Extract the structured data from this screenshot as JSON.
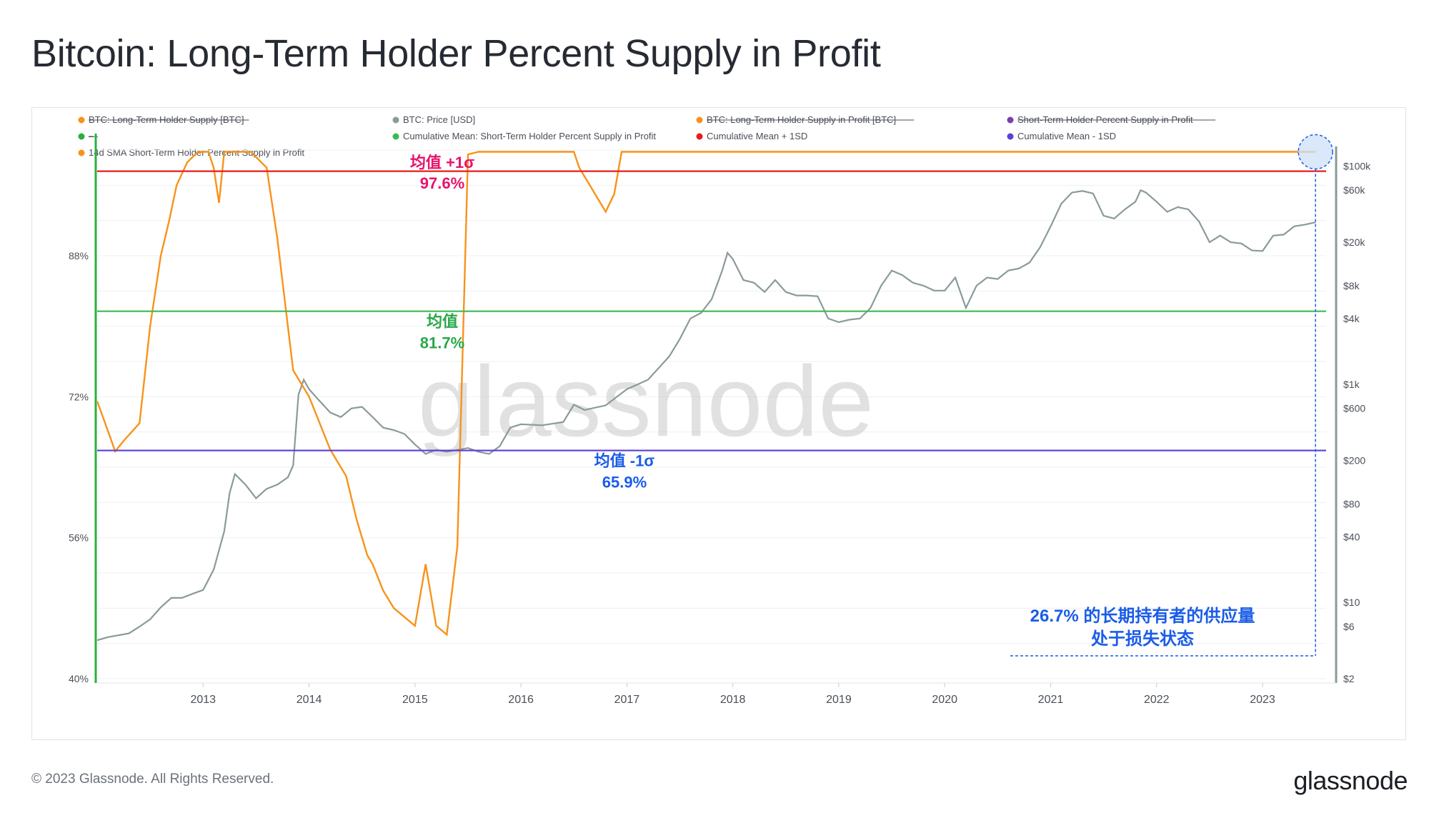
{
  "title": "Bitcoin: Long-Term Holder Percent Supply in Profit",
  "footer": {
    "copyright": "© 2023 Glassnode. All Rights Reserved.",
    "logo": "glassnode"
  },
  "watermark": "glassnode",
  "chart_data": {
    "type": "line",
    "legend": [
      {
        "label": "BTC: Long-Term Holder Supply [BTC]",
        "color": "#f7931a",
        "struck": true
      },
      {
        "label": "BTC: Price [USD]",
        "color": "#8a9a9b",
        "struck": false
      },
      {
        "label": "BTC: Long-Term Holder Supply in Profit [BTC]",
        "color": "#f7931a",
        "struck": true
      },
      {
        "label": "Short-Term Holder Percent Supply in Profit",
        "color": "#7b3fb0",
        "struck": true
      },
      {
        "label": "—",
        "color": "#2ab03a",
        "struck": true
      },
      {
        "label": "Cumulative Mean: Short-Term Holder Percent Supply in Profit",
        "color": "#3cba54",
        "struck": false
      },
      {
        "label": "Cumulative Mean + 1SD",
        "color": "#e81c1c",
        "struck": false
      },
      {
        "label": "Cumulative Mean - 1SD",
        "color": "#5b3fd6",
        "struck": false
      },
      {
        "label": "14d SMA Short-Term Holder Percent Supply in Profit",
        "color": "#f7931a",
        "struck": false
      }
    ],
    "x_ticks": [
      "2013",
      "2014",
      "2015",
      "2016",
      "2017",
      "2018",
      "2019",
      "2020",
      "2021",
      "2022",
      "2023"
    ],
    "y_left_ticks": [
      "40%",
      "56%",
      "72%",
      "88%"
    ],
    "y_left_range": [
      40,
      100
    ],
    "y_right_ticks": [
      "$2",
      "$6",
      "$10",
      "$40",
      "$80",
      "$200",
      "$600",
      "$1k",
      "$4k",
      "$8k",
      "$20k",
      "$60k",
      "$100k"
    ],
    "y_right_range": [
      2,
      140000
    ],
    "y_right_scale": "log",
    "reference_lines": [
      {
        "name": "mean_plus_1sd",
        "value": 97.6,
        "color": "#e81c1c",
        "label_top": "均值 +1σ",
        "label_bottom": "97.6%",
        "label_color": "#e8136a"
      },
      {
        "name": "mean",
        "value": 81.7,
        "color": "#3cba54",
        "label_top": "均值",
        "label_bottom": "81.7%",
        "label_color": "#2aa84a"
      },
      {
        "name": "mean_minus_1sd",
        "value": 65.9,
        "color": "#5b3fd6",
        "label_top": "均值 -1σ",
        "label_bottom": "65.9%",
        "label_color": "#1a5ce8"
      }
    ],
    "annotation": {
      "line1": "26.7% 的长期持有者的供应量",
      "line2": "处于损失状态",
      "color": "#1a5ce8"
    },
    "series": [
      {
        "name": "14d SMA Short-Term Holder Percent Supply in Profit",
        "axis": "left",
        "color": "#f7931a",
        "x": [
          2012.0,
          2012.12,
          2012.17,
          2012.25,
          2012.4,
          2012.5,
          2012.6,
          2012.68,
          2012.75,
          2012.85,
          2012.95,
          2013.05,
          2013.1,
          2013.15,
          2013.2,
          2013.45,
          2013.6,
          2013.7,
          2013.75,
          2013.8,
          2013.85,
          2014.0,
          2014.2,
          2014.3,
          2014.35,
          2014.45,
          2014.55,
          2014.6,
          2014.7,
          2014.8,
          2014.9,
          2015.0,
          2015.1,
          2015.2,
          2015.3,
          2015.4,
          2015.5,
          2015.6,
          2015.7,
          2015.75,
          2015.85,
          2015.9,
          2015.95,
          2016.0,
          2016.1,
          2016.2,
          2016.3,
          2016.4,
          2016.45,
          2016.5,
          2016.55,
          2016.6,
          2016.65,
          2016.7,
          2016.8,
          2016.88,
          2016.95,
          2017.0,
          2017.1,
          2017.2,
          2017.5,
          2018.0,
          2018.3,
          2018.35,
          2018.45,
          2018.5,
          2018.6,
          2018.7,
          2018.8,
          2018.9,
          2019.0,
          2019.05,
          2019.1,
          2019.2,
          2019.3,
          2019.35,
          2019.4,
          2019.45,
          2019.5,
          2019.55,
          2019.6,
          2019.7,
          2019.8,
          2019.9,
          2019.95,
          2020.0,
          2020.1,
          2020.15,
          2020.2,
          2020.25,
          2020.3,
          2020.4,
          2020.5,
          2020.6,
          2020.7,
          2020.8,
          2020.9,
          2021.0,
          2021.2,
          2021.4,
          2021.45,
          2021.5,
          2021.6,
          2021.7,
          2021.75,
          2021.8,
          2021.9,
          2022.0,
          2022.1,
          2022.15,
          2022.2,
          2022.3,
          2022.4,
          2022.45,
          2022.5,
          2022.6,
          2022.7,
          2022.8,
          2022.9,
          2022.95,
          2023.0,
          2023.05,
          2023.1,
          2023.15,
          2023.2,
          2023.3,
          2023.35,
          2023.4,
          2023.45,
          2023.5
        ],
        "y": [
          71.5,
          67.5,
          65.8,
          67,
          69,
          80,
          88,
          92,
          96,
          98.6,
          99.8,
          99.8,
          98,
          94,
          99.8,
          99.8,
          98,
          90,
          85,
          80,
          75,
          72,
          66,
          64,
          63,
          58,
          54,
          53,
          50,
          48,
          47,
          46,
          53,
          46,
          45,
          55,
          99.5,
          99.8,
          99.8,
          99.8,
          99.8,
          99.8,
          99.8,
          99.8,
          99.8,
          99.8,
          99.8,
          99.8,
          99.8,
          99.8,
          98,
          97,
          96,
          95,
          93,
          95,
          99.8,
          99.8,
          99.8,
          99.8,
          99.8,
          99.8,
          99.8,
          99.8,
          99.8,
          99.8,
          99.8,
          99.8,
          99.8,
          99.8,
          99.8,
          99.8,
          99.8,
          99.8,
          99.8,
          99.8,
          99.8,
          99.8,
          99.8,
          99.8,
          99.8,
          99.8,
          99.8,
          99.8,
          99.8,
          99.8,
          99.8,
          99.8,
          99.8,
          99.8,
          99.8,
          99.8,
          99.8,
          99.8,
          99.8,
          99.8,
          99.8,
          99.8,
          99.8,
          99.8,
          99.8,
          99.8,
          99.8,
          99.8,
          99.8,
          99.8,
          99.8,
          99.8,
          99.8,
          99.8,
          99.8,
          99.8,
          99.8,
          99.8,
          99.8,
          99.8,
          99.8,
          99.8,
          99.8,
          99.8,
          99.8,
          99.8,
          99.8,
          99.8,
          99.8,
          99.8,
          99.8,
          99.8,
          99.8,
          99.8
        ]
      },
      {
        "name": "BTC: Price [USD]",
        "axis": "right",
        "color": "#8a9a9b",
        "x": [
          2012.0,
          2012.1,
          2012.2,
          2012.3,
          2012.4,
          2012.5,
          2012.6,
          2012.7,
          2012.8,
          2012.9,
          2013.0,
          2013.1,
          2013.2,
          2013.25,
          2013.3,
          2013.4,
          2013.5,
          2013.6,
          2013.7,
          2013.8,
          2013.85,
          2013.9,
          2013.95,
          2014.0,
          2014.1,
          2014.2,
          2014.3,
          2014.4,
          2014.5,
          2014.6,
          2014.7,
          2014.8,
          2014.9,
          2015.0,
          2015.1,
          2015.2,
          2015.3,
          2015.4,
          2015.5,
          2015.6,
          2015.7,
          2015.8,
          2015.9,
          2016.0,
          2016.2,
          2016.4,
          2016.5,
          2016.6,
          2016.8,
          2017.0,
          2017.2,
          2017.4,
          2017.5,
          2017.6,
          2017.7,
          2017.8,
          2017.9,
          2017.95,
          2018.0,
          2018.1,
          2018.2,
          2018.3,
          2018.4,
          2018.5,
          2018.6,
          2018.7,
          2018.8,
          2018.9,
          2019.0,
          2019.1,
          2019.2,
          2019.3,
          2019.4,
          2019.5,
          2019.6,
          2019.7,
          2019.8,
          2019.9,
          2020.0,
          2020.1,
          2020.2,
          2020.3,
          2020.4,
          2020.5,
          2020.6,
          2020.7,
          2020.8,
          2020.9,
          2021.0,
          2021.1,
          2021.2,
          2021.3,
          2021.4,
          2021.5,
          2021.6,
          2021.7,
          2021.8,
          2021.85,
          2021.9,
          2022.0,
          2022.1,
          2022.2,
          2022.3,
          2022.4,
          2022.5,
          2022.6,
          2022.7,
          2022.8,
          2022.9,
          2023.0,
          2023.1,
          2023.2,
          2023.3,
          2023.4,
          2023.5
        ],
        "y": [
          4.5,
          4.8,
          5,
          5.2,
          6,
          7,
          9,
          11,
          11,
          12,
          13,
          20,
          45,
          100,
          150,
          120,
          90,
          110,
          120,
          140,
          180,
          800,
          1100,
          900,
          700,
          550,
          500,
          600,
          620,
          500,
          400,
          380,
          350,
          280,
          230,
          250,
          240,
          250,
          260,
          240,
          230,
          270,
          400,
          430,
          420,
          450,
          650,
          580,
          640,
          900,
          1100,
          1800,
          2600,
          4000,
          4500,
          6000,
          11000,
          16000,
          14000,
          9000,
          8500,
          7000,
          9000,
          7000,
          6500,
          6500,
          6400,
          4000,
          3700,
          3900,
          4000,
          5000,
          8000,
          11000,
          10000,
          8500,
          8000,
          7200,
          7200,
          9500,
          5000,
          8000,
          9500,
          9200,
          11000,
          11500,
          13000,
          18000,
          28000,
          45000,
          57000,
          59000,
          56000,
          35000,
          33000,
          40000,
          47000,
          60000,
          57000,
          47000,
          38000,
          42000,
          40000,
          31000,
          20000,
          23000,
          20000,
          19500,
          16800,
          16600,
          23000,
          23500,
          28000,
          29000,
          30500
        ]
      }
    ]
  }
}
